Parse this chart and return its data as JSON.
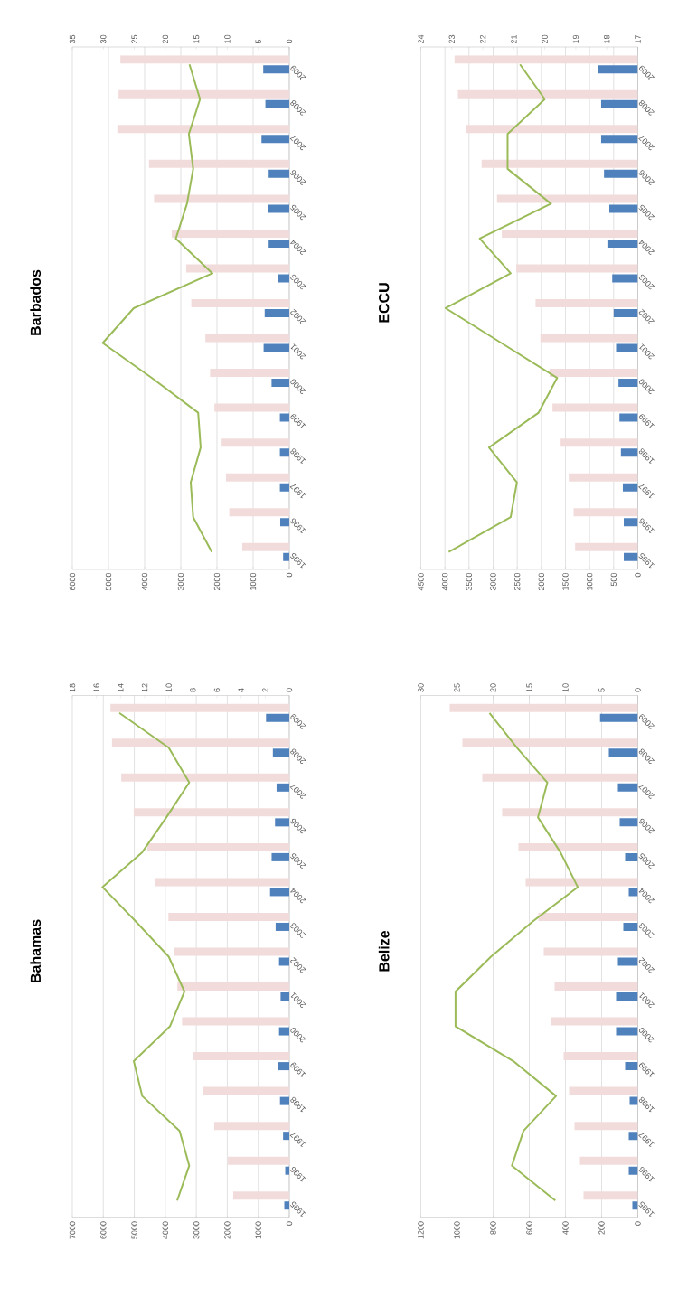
{
  "chart_data": [
    {
      "type": "bar",
      "orientation": "horizontal",
      "title": "Barbados",
      "grid": "x",
      "categories": [
        "2009",
        "2008",
        "2007",
        "2006",
        "2005",
        "2004",
        "2003",
        "2002",
        "2001",
        "2000",
        "1999",
        "1998",
        "1997",
        "1996",
        "1995"
      ],
      "xlim": [
        6000,
        0
      ],
      "xticks": [
        6000,
        5000,
        4000,
        3000,
        2000,
        1000,
        0
      ],
      "x2lim": [
        35,
        0
      ],
      "x2ticks": [
        35,
        30,
        25,
        20,
        15,
        10,
        5,
        0
      ],
      "series": [
        {
          "color": "#f2dcdb",
          "values": [
            4670,
            4720,
            4760,
            3880,
            3740,
            3250,
            2850,
            2710,
            2320,
            2190,
            2070,
            1870,
            1750,
            1660,
            1300
          ]
        },
        {
          "color": "#4f81bd",
          "values": [
            720,
            660,
            770,
            570,
            600,
            570,
            320,
            680,
            710,
            490,
            260,
            260,
            260,
            250,
            170
          ]
        },
        {
          "type": "line",
          "axis": "x2",
          "color": "#9bbb59",
          "values": [
            16.1,
            14.4,
            16.2,
            15.5,
            16.5,
            18.3,
            12.4,
            25.1,
            30.1,
            22.2,
            14.7,
            14.3,
            15.9,
            15.5,
            12.5
          ]
        }
      ]
    },
    {
      "type": "bar",
      "orientation": "horizontal",
      "title": "ECCU",
      "grid": "x",
      "categories": [
        "2009",
        "2008",
        "2007",
        "2006",
        "2005",
        "2004",
        "2003",
        "2002",
        "2001",
        "2000",
        "1999",
        "1998",
        "1997",
        "1996",
        "1995"
      ],
      "xlim": [
        4500,
        0
      ],
      "xticks": [
        4500,
        4000,
        3500,
        3000,
        2500,
        2000,
        1500,
        1000,
        500,
        0
      ],
      "x2lim": [
        24,
        17
      ],
      "x2ticks": [
        24,
        23,
        22,
        21,
        20,
        19,
        18,
        17
      ],
      "series": [
        {
          "color": "#f2dcdb",
          "values": [
            3800,
            3730,
            3560,
            3240,
            2920,
            2820,
            2520,
            2120,
            2020,
            1830,
            1770,
            1600,
            1430,
            1330,
            1300
          ]
        },
        {
          "color": "#4f81bd",
          "values": [
            820,
            760,
            760,
            700,
            590,
            630,
            530,
            500,
            450,
            400,
            380,
            350,
            310,
            290,
            290
          ]
        },
        {
          "type": "line",
          "axis": "x2",
          "color": "#9bbb59",
          "values": [
            20.8,
            20.0,
            21.2,
            21.2,
            19.8,
            22.1,
            21.1,
            23.2,
            21.4,
            19.6,
            20.2,
            21.8,
            20.9,
            21.1,
            23.1
          ]
        }
      ]
    },
    {
      "type": "bar",
      "orientation": "horizontal",
      "title": "Bahamas",
      "grid": "x",
      "categories": [
        "2009",
        "2008",
        "2007",
        "2006",
        "2005",
        "2004",
        "2003",
        "2002",
        "2001",
        "2000",
        "1999",
        "1998",
        "1997",
        "1996",
        "1995"
      ],
      "xlim": [
        7000,
        0
      ],
      "xticks": [
        7000,
        6000,
        5000,
        4000,
        3000,
        2000,
        1000,
        0
      ],
      "x2lim": [
        18,
        0
      ],
      "x2ticks": [
        18,
        16,
        14,
        12,
        10,
        8,
        6,
        4,
        2,
        0
      ],
      "series": [
        {
          "color": "#f2dcdb",
          "values": [
            5770,
            5720,
            5420,
            5020,
            4580,
            4320,
            3900,
            3730,
            3610,
            3460,
            3100,
            2790,
            2420,
            1980,
            1810
          ]
        },
        {
          "color": "#4f81bd",
          "values": [
            750,
            530,
            410,
            460,
            570,
            620,
            440,
            330,
            280,
            330,
            370,
            300,
            200,
            130,
            160
          ]
        },
        {
          "type": "line",
          "axis": "x2",
          "color": "#9bbb59",
          "values": [
            14.1,
            10.0,
            8.3,
            10.2,
            12.2,
            15.5,
            12.7,
            10.0,
            8.7,
            9.9,
            12.9,
            12.2,
            9.1,
            8.3,
            9.3
          ]
        }
      ]
    },
    {
      "type": "bar",
      "orientation": "horizontal",
      "title": "Belize",
      "grid": "x",
      "categories": [
        "2009",
        "2008",
        "2007",
        "2006",
        "2005",
        "2004",
        "2003",
        "2002",
        "2001",
        "2000",
        "1999",
        "1998",
        "1997",
        "1996",
        "1995"
      ],
      "xlim": [
        1200,
        0
      ],
      "xticks": [
        1200,
        1000,
        800,
        600,
        400,
        200,
        0
      ],
      "x2lim": [
        30,
        0
      ],
      "x2ticks": [
        30,
        25,
        20,
        15,
        10,
        5,
        0
      ],
      "series": [
        {
          "color": "#f2dcdb",
          "values": [
            1040,
            970,
            860,
            750,
            660,
            620,
            550,
            520,
            460,
            480,
            410,
            380,
            350,
            320,
            300
          ]
        },
        {
          "color": "#4f81bd",
          "values": [
            210,
            160,
            110,
            100,
            70,
            50,
            80,
            110,
            120,
            120,
            70,
            45,
            50,
            50,
            30
          ]
        },
        {
          "type": "line",
          "axis": "x2",
          "color": "#9bbb59",
          "values": [
            20.5,
            16.7,
            12.5,
            13.8,
            10.7,
            8.3,
            14.6,
            20.3,
            25.2,
            25.2,
            17.2,
            11.3,
            15.8,
            17.4,
            11.4
          ]
        }
      ]
    }
  ]
}
